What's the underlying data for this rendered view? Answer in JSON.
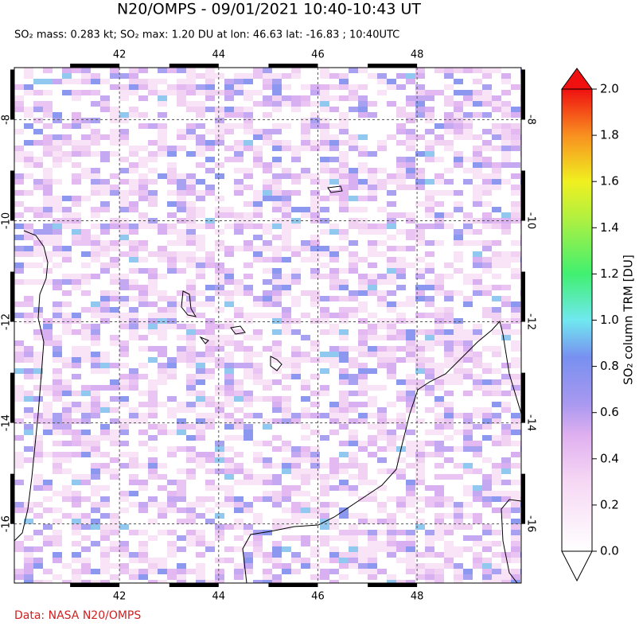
{
  "header": {
    "title": "N20/OMPS - 09/01/2021 10:40-10:43 UT",
    "subtitle": "SO₂ mass: 0.283 kt; SO₂ max: 1.20 DU at lon: 46.63 lat: -16.83 ; 10:40UTC"
  },
  "map": {
    "lon_range": [
      39.88,
      50.1
    ],
    "lat_range": [
      -6.97,
      -17.17
    ],
    "lon_ticks": [
      42,
      44,
      46,
      48
    ],
    "lat_ticks": [
      -8,
      -10,
      -12,
      -14,
      -16
    ]
  },
  "colorbar": {
    "label": "SO₂ column TRM [DU]",
    "range": [
      0,
      2
    ],
    "ticks": [
      {
        "value": 0,
        "label": "0.0"
      },
      {
        "value": 0.2,
        "label": "0.2"
      },
      {
        "value": 0.4,
        "label": "0.4"
      },
      {
        "value": 0.6,
        "label": "0.6"
      },
      {
        "value": 0.8,
        "label": "0.8"
      },
      {
        "value": 1.0,
        "label": "1.0"
      },
      {
        "value": 1.2,
        "label": "1.2"
      },
      {
        "value": 1.4,
        "label": "1.4"
      },
      {
        "value": 1.6,
        "label": "1.6"
      },
      {
        "value": 1.8,
        "label": "1.8"
      },
      {
        "value": 2.0,
        "label": "2.0"
      }
    ]
  },
  "footer": {
    "source": "Data: NASA N20/OMPS"
  }
}
